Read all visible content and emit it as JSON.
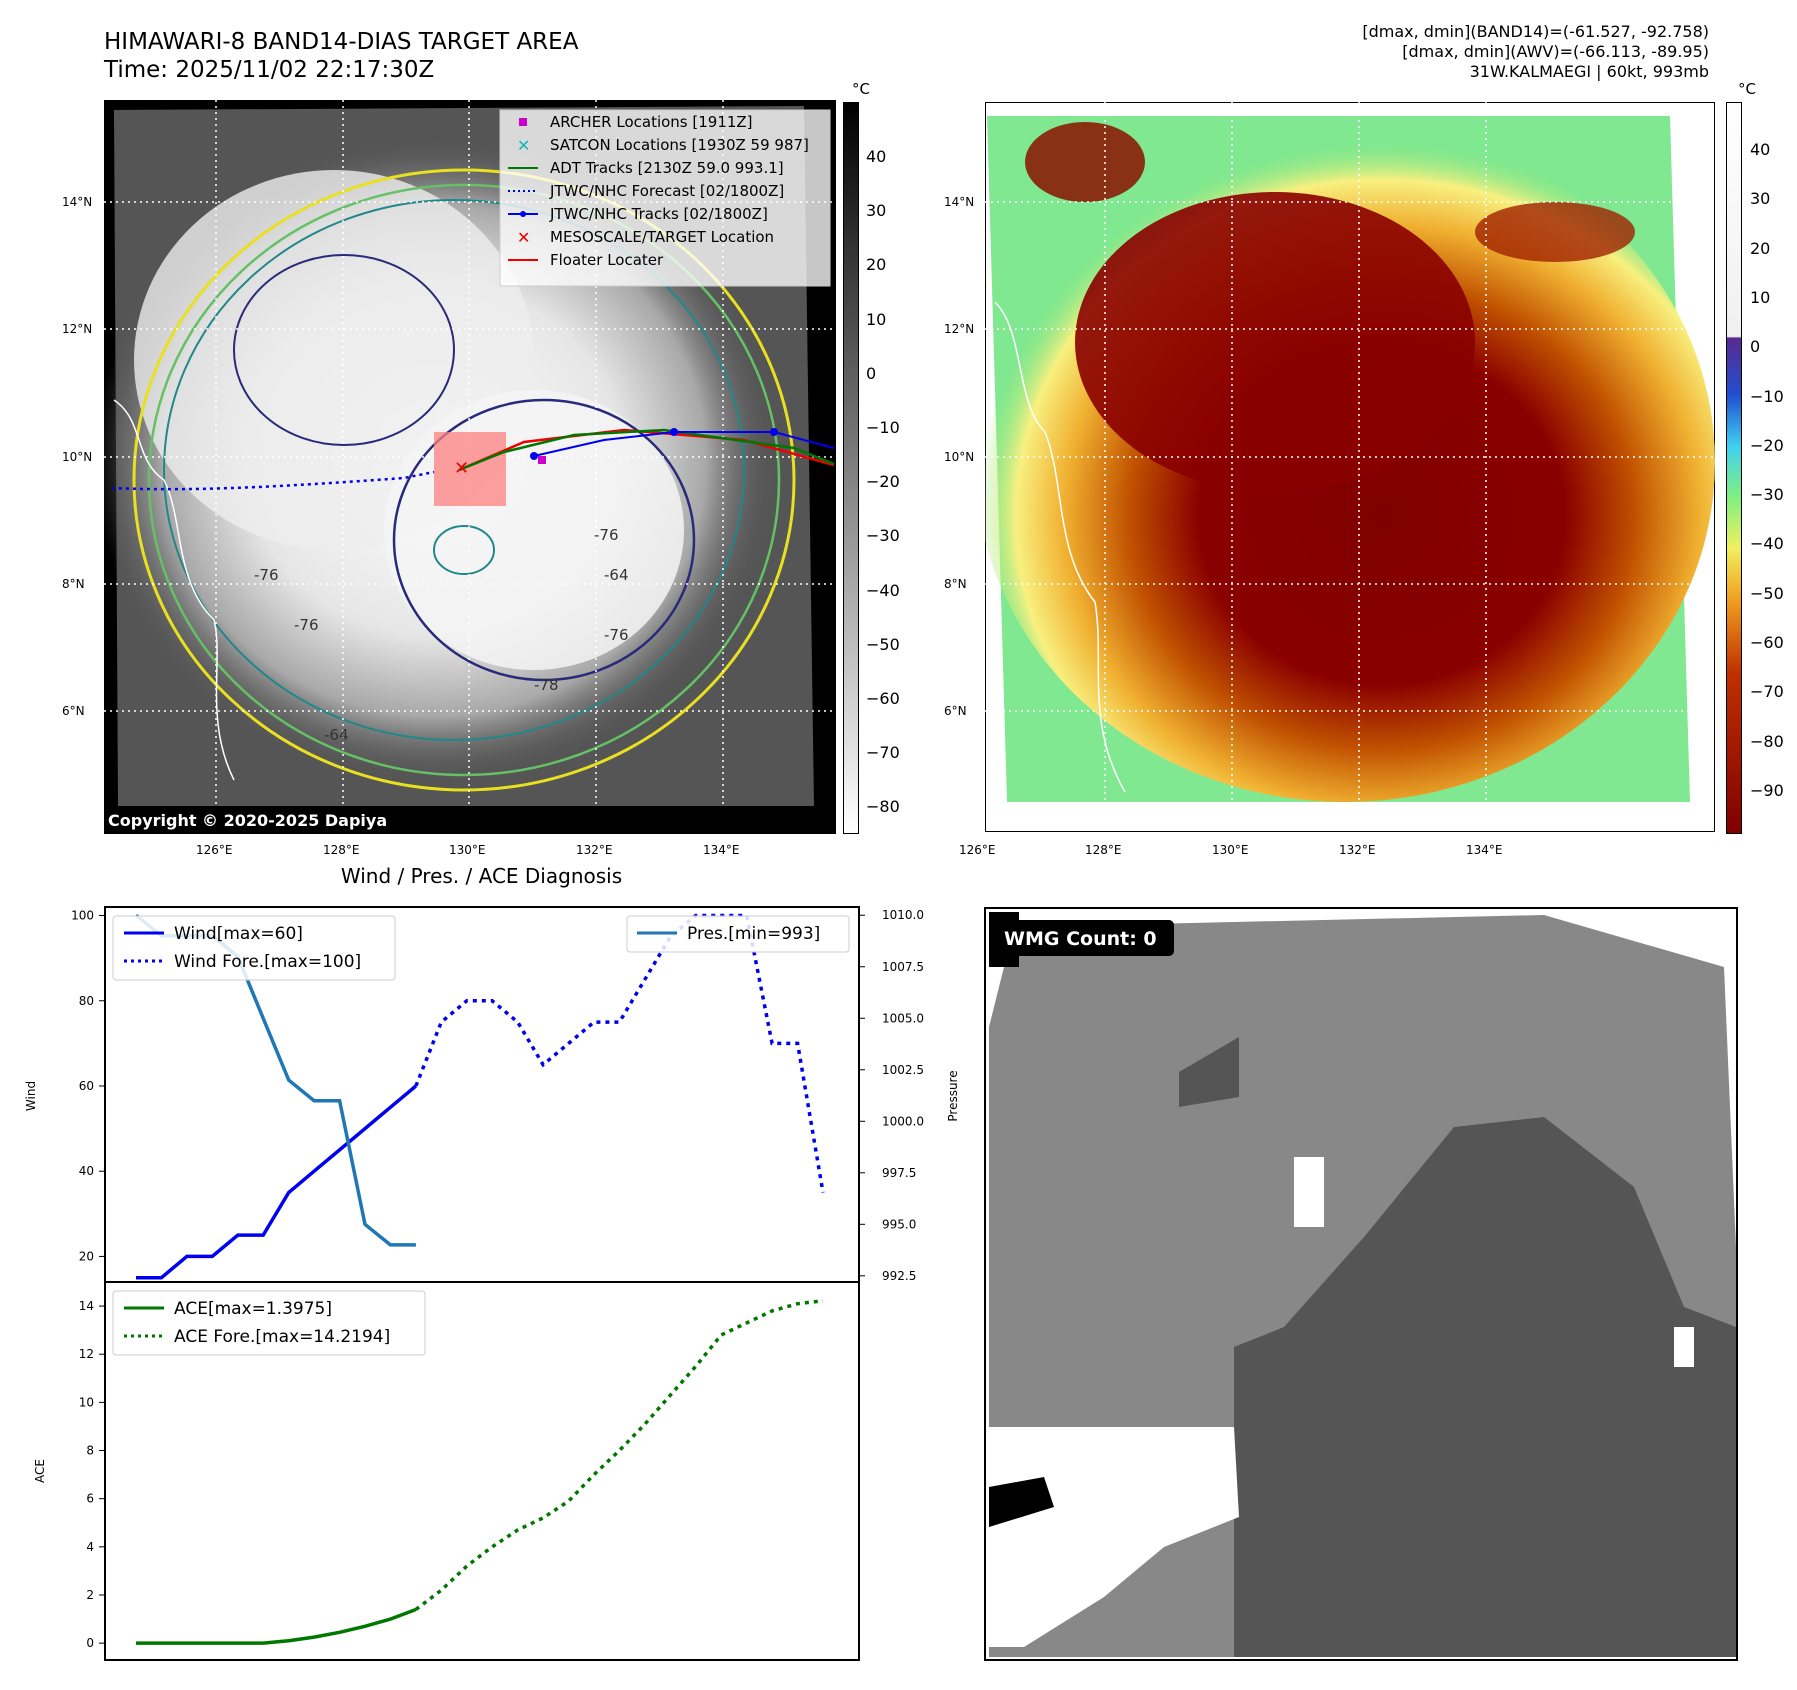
{
  "header": {
    "title_line1": "HIMAWARI-8 BAND14-DIAS TARGET AREA",
    "title_line2": "Time: 2025/11/02 22:17:30Z",
    "info_line1": "[dmax, dmin](BAND14)=(-61.527, -92.758)",
    "info_line2": "[dmax, dmin](AWV)=(-66.113, -89.95)",
    "info_line3": "31W.KALMAEGI | 60kt, 993mb"
  },
  "map": {
    "lat_labels": [
      "14°N",
      "12°N",
      "10°N",
      "8°N",
      "6°N"
    ],
    "lon_labels": [
      "126°E",
      "128°E",
      "130°E",
      "132°E",
      "134°E"
    ],
    "copyright": "Copyright © 2020-2025 Dapiya",
    "contour_labels": [
      "-76",
      "-76",
      "-64",
      "-76",
      "-64",
      "-76",
      "-78"
    ],
    "legend": [
      {
        "label": "ARCHER Locations [1911Z]",
        "color": "#cc00cc",
        "symbol": "square"
      },
      {
        "label": "SATCON Locations [1930Z 59 987]",
        "color": "#10b8b8",
        "symbol": "x"
      },
      {
        "label": "ADT Tracks [2130Z 59.0 993.1]",
        "color": "#007700",
        "symbol": "line"
      },
      {
        "label": "JTWC/NHC Forecast [02/1800Z]",
        "color": "#0000ee",
        "symbol": "dotted"
      },
      {
        "label": "JTWC/NHC Tracks [02/1800Z]",
        "color": "#0000ee",
        "symbol": "line-dot"
      },
      {
        "label": "MESOSCALE/TARGET Location",
        "color": "#ee0000",
        "symbol": "x"
      },
      {
        "label": "Floater Locater",
        "color": "#ee0000",
        "symbol": "line"
      }
    ]
  },
  "colorbar_gray": {
    "unit": "°C",
    "ticks": [
      "40",
      "30",
      "20",
      "10",
      "0",
      "−10",
      "−20",
      "−30",
      "−40",
      "−50",
      "−60",
      "−70",
      "−80"
    ]
  },
  "colorbar_color": {
    "unit": "°C",
    "ticks": [
      "40",
      "30",
      "20",
      "10",
      "0",
      "−10",
      "−20",
      "−30",
      "−40",
      "−50",
      "−60",
      "−70",
      "−80",
      "−90"
    ]
  },
  "chart_data": [
    {
      "type": "line",
      "title": "Wind / Pres. / ACE Diagnosis",
      "ylabel": "Wind",
      "ylabel2": "Pressure",
      "ylim": [
        14,
        102
      ],
      "ylim2": [
        992.2,
        1010.4
      ],
      "yticks": [
        "100",
        "80",
        "60",
        "40",
        "20"
      ],
      "yticks2": [
        "1010.0",
        "1007.5",
        "1005.0",
        "1002.5",
        "1000.0",
        "997.5",
        "995.0",
        "992.5"
      ],
      "legend_left": [
        "Wind[max=60]",
        "Wind Fore.[max=100]"
      ],
      "legend_right": [
        "Pres.[min=993]"
      ],
      "series": [
        {
          "name": "Wind[max=60]",
          "style": "solid",
          "color": "#0000ee",
          "x": [
            0,
            1,
            2,
            3,
            4,
            5,
            6,
            7,
            8,
            9,
            10,
            11
          ],
          "values": [
            15,
            15,
            20,
            20,
            25,
            25,
            35,
            40,
            45,
            50,
            55,
            60
          ]
        },
        {
          "name": "Wind Fore.[max=100]",
          "style": "dotted",
          "color": "#0000ee",
          "x": [
            11,
            12,
            13,
            14,
            15,
            16,
            17,
            18,
            19,
            20,
            21,
            22,
            23,
            24,
            25,
            26,
            27
          ],
          "values": [
            60,
            75,
            80,
            80,
            75,
            65,
            70,
            75,
            75,
            85,
            95,
            100,
            100,
            100,
            70,
            70,
            35
          ]
        },
        {
          "name": "Pres.[min=993]",
          "style": "solid",
          "color": "#1f77b4",
          "axis": "right",
          "x": [
            0,
            1,
            2,
            3,
            4,
            5,
            6,
            7,
            8,
            9,
            10,
            11
          ],
          "values": [
            1010,
            1009,
            1009,
            1009,
            1008,
            1005,
            1002,
            1001,
            1001,
            995,
            994,
            994
          ]
        }
      ]
    },
    {
      "type": "line",
      "ylabel": "ACE",
      "ylim": [
        -0.7,
        15
      ],
      "yticks": [
        "14",
        "12",
        "10",
        "8",
        "6",
        "4",
        "2",
        "0"
      ],
      "legend": [
        "ACE[max=1.3975]",
        "ACE Fore.[max=14.2194]"
      ],
      "series": [
        {
          "name": "ACE[max=1.3975]",
          "style": "solid",
          "color": "#007700",
          "x": [
            0,
            1,
            2,
            3,
            4,
            5,
            6,
            7,
            8,
            9,
            10,
            11
          ],
          "values": [
            0,
            0,
            0,
            0,
            0,
            0,
            0.1,
            0.25,
            0.45,
            0.7,
            1.0,
            1.3975
          ]
        },
        {
          "name": "ACE Fore.[max=14.2194]",
          "style": "dotted",
          "color": "#007700",
          "x": [
            11,
            12,
            13,
            14,
            15,
            16,
            17,
            18,
            19,
            20,
            21,
            22,
            23,
            24,
            25,
            26,
            27
          ],
          "values": [
            1.3975,
            2.2,
            3.2,
            4.0,
            4.7,
            5.2,
            5.9,
            7.0,
            8.0,
            9.1,
            10.3,
            11.5,
            12.8,
            13.3,
            13.8,
            14.1,
            14.2194
          ]
        }
      ]
    }
  ],
  "wmg": {
    "label": "WMG Count: 0"
  }
}
